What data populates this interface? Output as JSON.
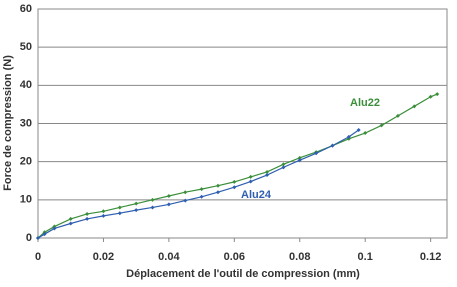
{
  "chart_data": {
    "type": "line",
    "x_label": "Déplacement de l'outil de compression (mm)",
    "y_label": "Force de compression (N)",
    "xlim": [
      0,
      0.125
    ],
    "xticks": [
      0,
      0.02,
      0.04,
      0.06,
      0.08,
      0.1,
      0.12
    ],
    "ylim": [
      0,
      60
    ],
    "yticks": [
      0,
      10,
      20,
      30,
      40,
      50,
      60
    ],
    "grid": true,
    "series": [
      {
        "name": "Alu22",
        "color": "#3b8f3b",
        "x": [
          0,
          0.002,
          0.005,
          0.01,
          0.015,
          0.02,
          0.025,
          0.03,
          0.035,
          0.04,
          0.045,
          0.05,
          0.055,
          0.06,
          0.065,
          0.07,
          0.075,
          0.08,
          0.085,
          0.09,
          0.095,
          0.1,
          0.105,
          0.11,
          0.115,
          0.12,
          0.122
        ],
        "values": [
          0,
          1.5,
          3,
          5,
          6.3,
          7,
          8,
          9,
          10,
          11,
          12,
          12.8,
          13.7,
          14.7,
          16,
          17.3,
          19.3,
          21,
          22.5,
          24.2,
          26,
          27.5,
          29.5,
          32,
          34.5,
          37,
          37.7
        ]
      },
      {
        "name": "Alu24",
        "color": "#2e5fb0",
        "x": [
          0,
          0.002,
          0.005,
          0.01,
          0.015,
          0.02,
          0.025,
          0.03,
          0.035,
          0.04,
          0.045,
          0.05,
          0.055,
          0.06,
          0.065,
          0.07,
          0.075,
          0.08,
          0.085,
          0.09,
          0.095,
          0.098
        ],
        "values": [
          0,
          1,
          2.5,
          3.8,
          5,
          5.8,
          6.5,
          7.3,
          8,
          8.8,
          9.8,
          10.8,
          12,
          13.3,
          14.8,
          16.5,
          18.5,
          20.4,
          22.2,
          24.2,
          26.5,
          28.3
        ]
      }
    ]
  }
}
